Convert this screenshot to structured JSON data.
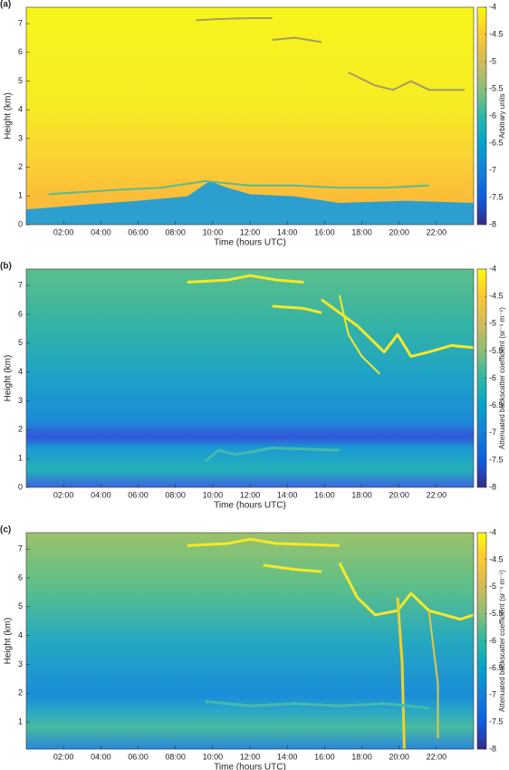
{
  "chart_data": [
    {
      "type": "heatmap",
      "panel_label": "(a)",
      "xlabel": "Time (hours UTC)",
      "ylabel": "Height (km)",
      "colorbar_label": "Arbitrary units",
      "xlim": [
        0,
        24
      ],
      "ylim": [
        0,
        7.57
      ],
      "xticks": [
        {
          "value": 2,
          "label": "02:00"
        },
        {
          "value": 4,
          "label": "04:00"
        },
        {
          "value": 6,
          "label": "06:00"
        },
        {
          "value": 8,
          "label": "08:00"
        },
        {
          "value": 10,
          "label": "10:00"
        },
        {
          "value": 12,
          "label": "12:00"
        },
        {
          "value": 14,
          "label": "14:00"
        },
        {
          "value": 16,
          "label": "16:00"
        },
        {
          "value": 18,
          "label": "18:00"
        },
        {
          "value": 20,
          "label": "20:00"
        },
        {
          "value": 22,
          "label": "22:00"
        }
      ],
      "yticks": [
        0,
        1,
        2,
        3,
        4,
        5,
        6,
        7
      ],
      "clim": [
        -8,
        -4
      ],
      "cticks": [
        -4,
        -4.5,
        -5,
        -5.5,
        -6,
        -6.5,
        -7,
        -7.5,
        -8
      ]
    },
    {
      "type": "heatmap",
      "panel_label": "(b)",
      "xlabel": "Time (hours UTC)",
      "ylabel": "Height (km)",
      "colorbar_label": "Attenuated backscatter coefficient (sr⁻¹ m⁻¹)",
      "xlim": [
        0,
        24
      ],
      "ylim": [
        0,
        7.57
      ],
      "xticks": [
        {
          "value": 2,
          "label": "02:00"
        },
        {
          "value": 4,
          "label": "04:00"
        },
        {
          "value": 6,
          "label": "06:00"
        },
        {
          "value": 8,
          "label": "08:00"
        },
        {
          "value": 10,
          "label": "10:00"
        },
        {
          "value": 12,
          "label": "12:00"
        },
        {
          "value": 14,
          "label": "14:00"
        },
        {
          "value": 16,
          "label": "16:00"
        },
        {
          "value": 18,
          "label": "18:00"
        },
        {
          "value": 20,
          "label": "20:00"
        },
        {
          "value": 22,
          "label": "22:00"
        }
      ],
      "yticks": [
        0,
        1,
        2,
        3,
        4,
        5,
        6,
        7
      ],
      "clim": [
        -8,
        -4
      ],
      "cticks": [
        -4,
        -4.5,
        -5,
        -5.5,
        -6,
        -6.5,
        -7,
        -7.5,
        -8
      ]
    },
    {
      "type": "heatmap",
      "panel_label": "(c)",
      "xlabel": "Time (hours UTC)",
      "ylabel": "Height (km)",
      "colorbar_label": "Attenuated backscatter coefficient (sr⁻¹ m⁻¹)",
      "xlim": [
        0,
        24
      ],
      "ylim": [
        0.06,
        7.57
      ],
      "xticks": [
        {
          "value": 2,
          "label": "02:00"
        },
        {
          "value": 4,
          "label": "04:00"
        },
        {
          "value": 6,
          "label": "06:00"
        },
        {
          "value": 8,
          "label": "08:00"
        },
        {
          "value": 10,
          "label": "10:00"
        },
        {
          "value": 12,
          "label": "12:00"
        },
        {
          "value": 14,
          "label": "14:00"
        },
        {
          "value": 16,
          "label": "16:00"
        },
        {
          "value": 18,
          "label": "18:00"
        },
        {
          "value": 20,
          "label": "20:00"
        },
        {
          "value": 22,
          "label": "22:00"
        }
      ],
      "yticks": [
        1,
        2,
        3,
        4,
        5,
        6,
        7
      ],
      "clim": [
        -8,
        -4
      ],
      "cticks": [
        -4,
        -4.5,
        -5,
        -5.5,
        -6,
        -6.5,
        -7,
        -7.5,
        -8
      ]
    }
  ]
}
